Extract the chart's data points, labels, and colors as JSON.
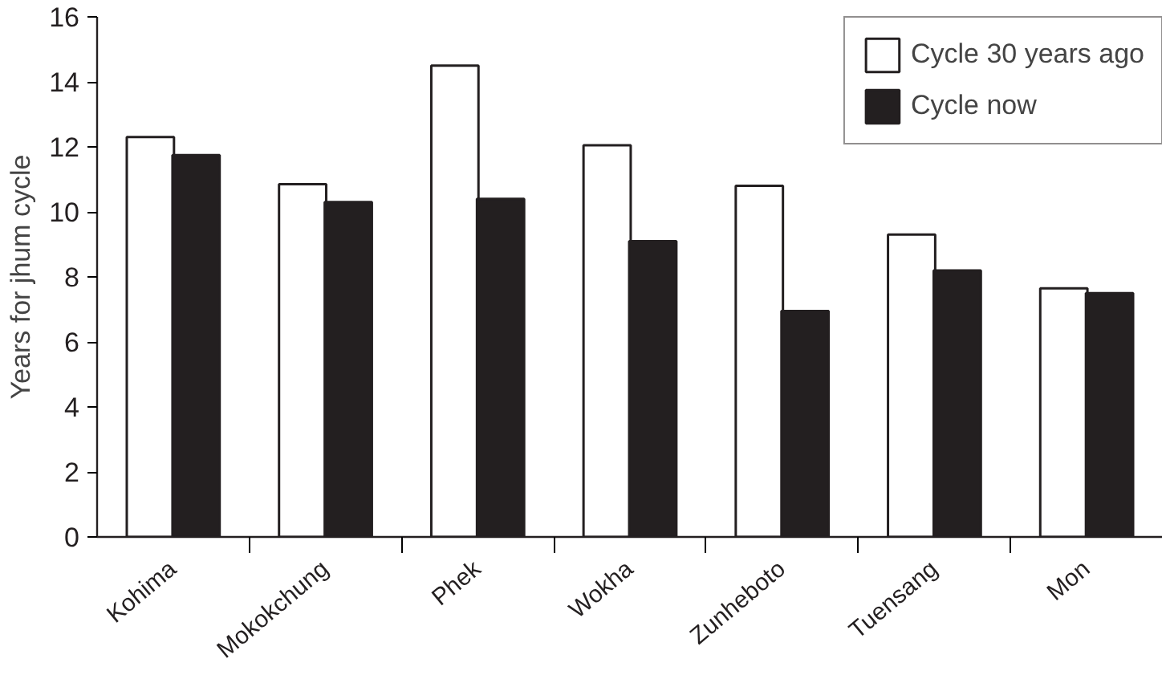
{
  "chart_data": {
    "type": "bar",
    "ylabel": "Years for jhum cycle",
    "categories": [
      "Kohima",
      "Mokokchung",
      "Phek",
      "Wokha",
      "Zunheboto",
      "Tuensang",
      "Mon"
    ],
    "series": [
      {
        "name": "Cycle 30 years ago",
        "color": "#ffffff",
        "values": [
          12.3,
          10.85,
          14.5,
          12.05,
          10.8,
          9.3,
          7.65
        ]
      },
      {
        "name": "Cycle now",
        "color": "#231f20",
        "values": [
          11.75,
          10.3,
          10.4,
          9.1,
          6.95,
          8.2,
          7.5
        ]
      }
    ],
    "ylim": [
      0,
      16
    ],
    "yticks": [
      0,
      2,
      4,
      6,
      8,
      10,
      12,
      14,
      16
    ],
    "grid": false,
    "legend": "top right"
  }
}
